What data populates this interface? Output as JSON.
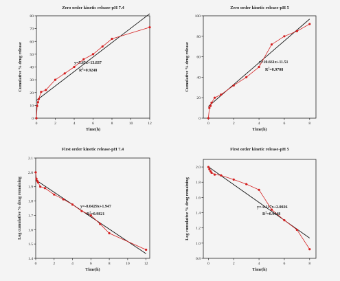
{
  "chart_data": [
    {
      "type": "scatter",
      "title": "Zero order kinetic release-pH 7.4",
      "xlabel": "Time(h)",
      "ylabel": "Cumulative % drug release",
      "xlim": [
        0,
        12
      ],
      "ylim": [
        0,
        80
      ],
      "xticks": [
        0,
        2,
        4,
        6,
        8,
        10,
        12
      ],
      "yticks": [
        0,
        10,
        20,
        30,
        40,
        50,
        60,
        70,
        80
      ],
      "x": [
        0,
        0.08,
        0.17,
        0.25,
        0.5,
        1,
        2,
        3,
        4,
        5,
        6,
        7,
        8,
        12
      ],
      "y": [
        0,
        9.5,
        12.5,
        15,
        20.5,
        22,
        30,
        35,
        40,
        46,
        50,
        56,
        62,
        71
      ],
      "fit": {
        "slope": 5.65,
        "intercept": 13.837
      },
      "equation": "y=5.65x+13.837",
      "r2_prefix": "R",
      "r2_sup": "2",
      "r2_value": "=0.9248"
    },
    {
      "type": "scatter",
      "title": "Zero order kinetic release-pH 5",
      "xlabel": "Time(h)",
      "ylabel": "Cumulative % drug release",
      "xlim": [
        -0.4,
        8.5
      ],
      "ylim": [
        0,
        100
      ],
      "xticks": [
        0,
        2,
        4,
        6,
        8
      ],
      "yticks": [
        0,
        20,
        40,
        60,
        80,
        100
      ],
      "x": [
        0,
        0.08,
        0.17,
        0.25,
        0.5,
        1,
        2,
        3,
        4,
        5,
        6,
        7,
        8
      ],
      "y": [
        0,
        10,
        12,
        15,
        20,
        23,
        32,
        40,
        50,
        72,
        80,
        85,
        92
      ],
      "fit": {
        "slope": 10.661,
        "intercept": 11.51
      },
      "equation": "y=10.661x+11.51",
      "r2_prefix": "R",
      "r2_sup": "2",
      "r2_value": "=0.9708"
    },
    {
      "type": "scatter",
      "title": "First order kinetic release-pH 7.4",
      "xlabel": "Time(h)",
      "ylabel": "Log cumulative % drug remaining",
      "xlim": [
        0,
        12.4
      ],
      "ylim": [
        1.4,
        2.1
      ],
      "xticks": [
        0,
        2,
        4,
        6,
        8,
        10,
        12
      ],
      "yticks": [
        1.4,
        1.5,
        1.6,
        1.7,
        1.8,
        1.9,
        2.0,
        2.1
      ],
      "x": [
        0,
        0.08,
        0.17,
        0.25,
        0.5,
        1,
        2,
        3,
        4,
        5,
        6,
        7,
        8,
        12
      ],
      "y": [
        2.0,
        1.955,
        1.94,
        1.93,
        1.9,
        1.89,
        1.845,
        1.812,
        1.775,
        1.73,
        1.7,
        1.64,
        1.575,
        1.46
      ],
      "fit": {
        "slope": -0.0429,
        "intercept": 1.947
      },
      "equation": "y=-0.0429x+1.947",
      "r2_prefix": "R",
      "r2_sup": "2",
      "r2_value": "=0.9821"
    },
    {
      "type": "scatter",
      "title": "First order kinetic release-pH 5",
      "xlabel": "Time(h)",
      "ylabel": "Log cumulative % drug remaining",
      "xlim": [
        -0.4,
        8.5
      ],
      "ylim": [
        0.8,
        2.1
      ],
      "xticks": [
        0,
        2,
        4,
        6,
        8
      ],
      "yticks": [
        0.8,
        1.0,
        1.2,
        1.4,
        1.6,
        1.8,
        2.0
      ],
      "x": [
        0,
        0.08,
        0.17,
        0.25,
        0.5,
        1,
        2,
        3,
        4,
        5,
        6,
        7,
        8
      ],
      "y": [
        2.0,
        1.97,
        1.945,
        1.925,
        1.9,
        1.89,
        1.835,
        1.775,
        1.7,
        1.44,
        1.3,
        1.175,
        0.92
      ],
      "fit": {
        "slope": -0.117,
        "intercept": 2.0026
      },
      "equation": "y=-0.117x+2.0026",
      "r2_prefix": "R",
      "r2_sup": "2",
      "r2_value": "=0.9448"
    }
  ],
  "colors": {
    "data": "#d41e1e",
    "fit": "#111111",
    "axis": "#222222",
    "background": "#f4f4f4"
  }
}
